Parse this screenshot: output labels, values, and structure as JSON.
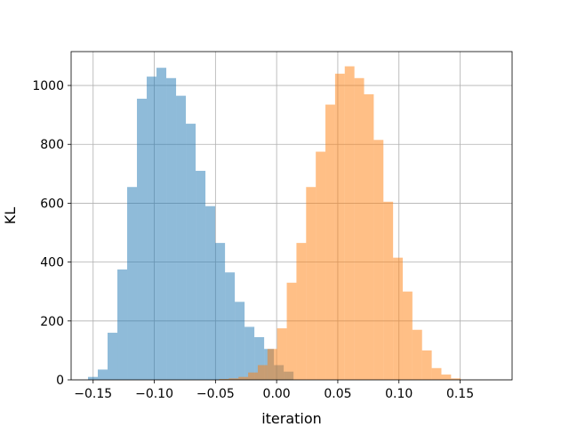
{
  "chart_data": {
    "type": "histogram",
    "xlabel": "iteration",
    "ylabel": "KL",
    "xlim": [
      -0.168,
      0.1925
    ],
    "ylim": [
      0,
      1115
    ],
    "grid": true,
    "x_ticks": [
      -0.15,
      -0.1,
      -0.05,
      0.0,
      0.05,
      0.1,
      0.15
    ],
    "x_tick_labels": [
      "−0.15",
      "−0.10",
      "−0.05",
      "0.00",
      "0.05",
      "0.10",
      "0.15"
    ],
    "y_ticks": [
      0,
      200,
      400,
      600,
      800,
      1000
    ],
    "y_tick_labels": [
      "0",
      "200",
      "400",
      "600",
      "800",
      "1000"
    ],
    "series": [
      {
        "color": "#1f77b4",
        "opacity": 0.5,
        "bin_start": -0.1542,
        "bin_width": 0.008,
        "counts": [
          10,
          35,
          160,
          375,
          655,
          955,
          1030,
          1060,
          1025,
          965,
          870,
          710,
          590,
          465,
          365,
          265,
          180,
          145,
          105,
          50,
          28
        ]
      },
      {
        "color": "#ff7f0e",
        "opacity": 0.5,
        "bin_start": -0.047,
        "bin_width": 0.0079,
        "counts": [
          3,
          5,
          10,
          25,
          50,
          105,
          175,
          330,
          465,
          655,
          775,
          935,
          1040,
          1065,
          1025,
          970,
          815,
          605,
          415,
          300,
          170,
          100,
          40,
          18,
          5
        ]
      }
    ]
  }
}
